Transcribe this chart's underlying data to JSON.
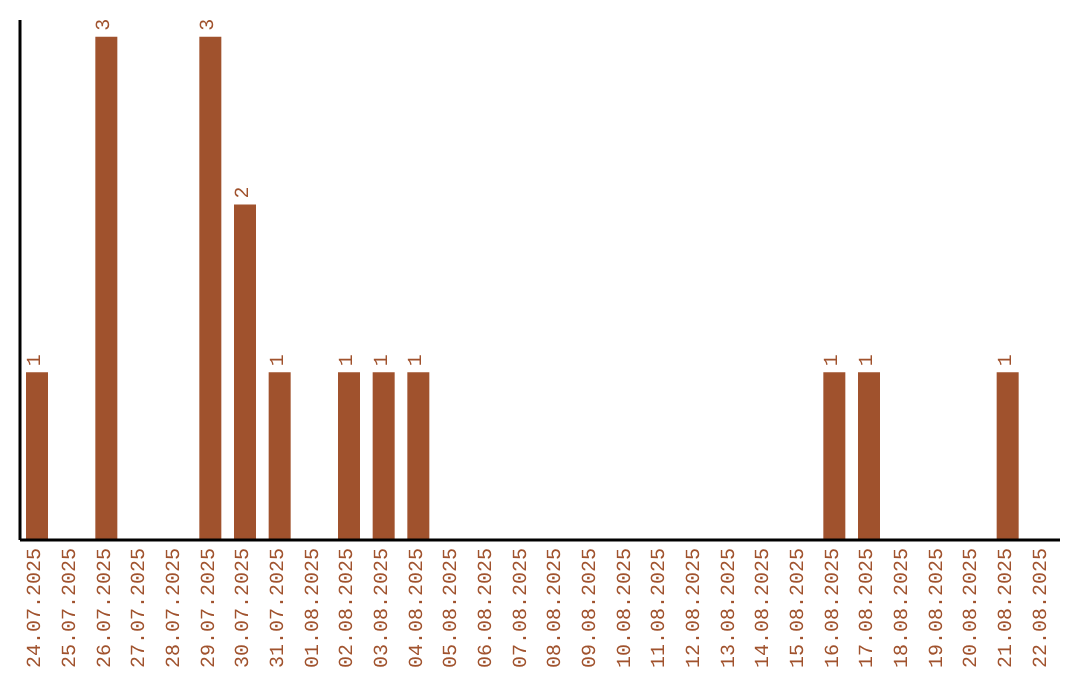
{
  "chart_data": {
    "type": "bar",
    "categories": [
      "24.07.2025",
      "25.07.2025",
      "26.07.2025",
      "27.07.2025",
      "28.07.2025",
      "29.07.2025",
      "30.07.2025",
      "31.07.2025",
      "01.08.2025",
      "02.08.2025",
      "03.08.2025",
      "04.08.2025",
      "05.08.2025",
      "06.08.2025",
      "07.08.2025",
      "08.08.2025",
      "09.08.2025",
      "10.08.2025",
      "11.08.2025",
      "12.08.2025",
      "13.08.2025",
      "14.08.2025",
      "15.08.2025",
      "16.08.2025",
      "17.08.2025",
      "18.08.2025",
      "19.08.2025",
      "20.08.2025",
      "21.08.2025",
      "22.08.2025"
    ],
    "values": [
      1,
      0,
      3,
      0,
      0,
      3,
      2,
      1,
      0,
      1,
      1,
      1,
      0,
      0,
      0,
      0,
      0,
      0,
      0,
      0,
      0,
      0,
      0,
      1,
      1,
      0,
      0,
      0,
      1,
      0
    ],
    "value_labels": [
      "1",
      null,
      "3",
      null,
      null,
      "3",
      "2",
      "1",
      null,
      "1",
      "1",
      "1",
      null,
      null,
      null,
      null,
      null,
      null,
      null,
      null,
      null,
      null,
      null,
      "1",
      "1",
      null,
      null,
      null,
      "1",
      null
    ],
    "color": "#a0522d",
    "ylim": [
      0,
      3.1
    ],
    "tick_labels": "x",
    "grid": false,
    "legend": false
  }
}
